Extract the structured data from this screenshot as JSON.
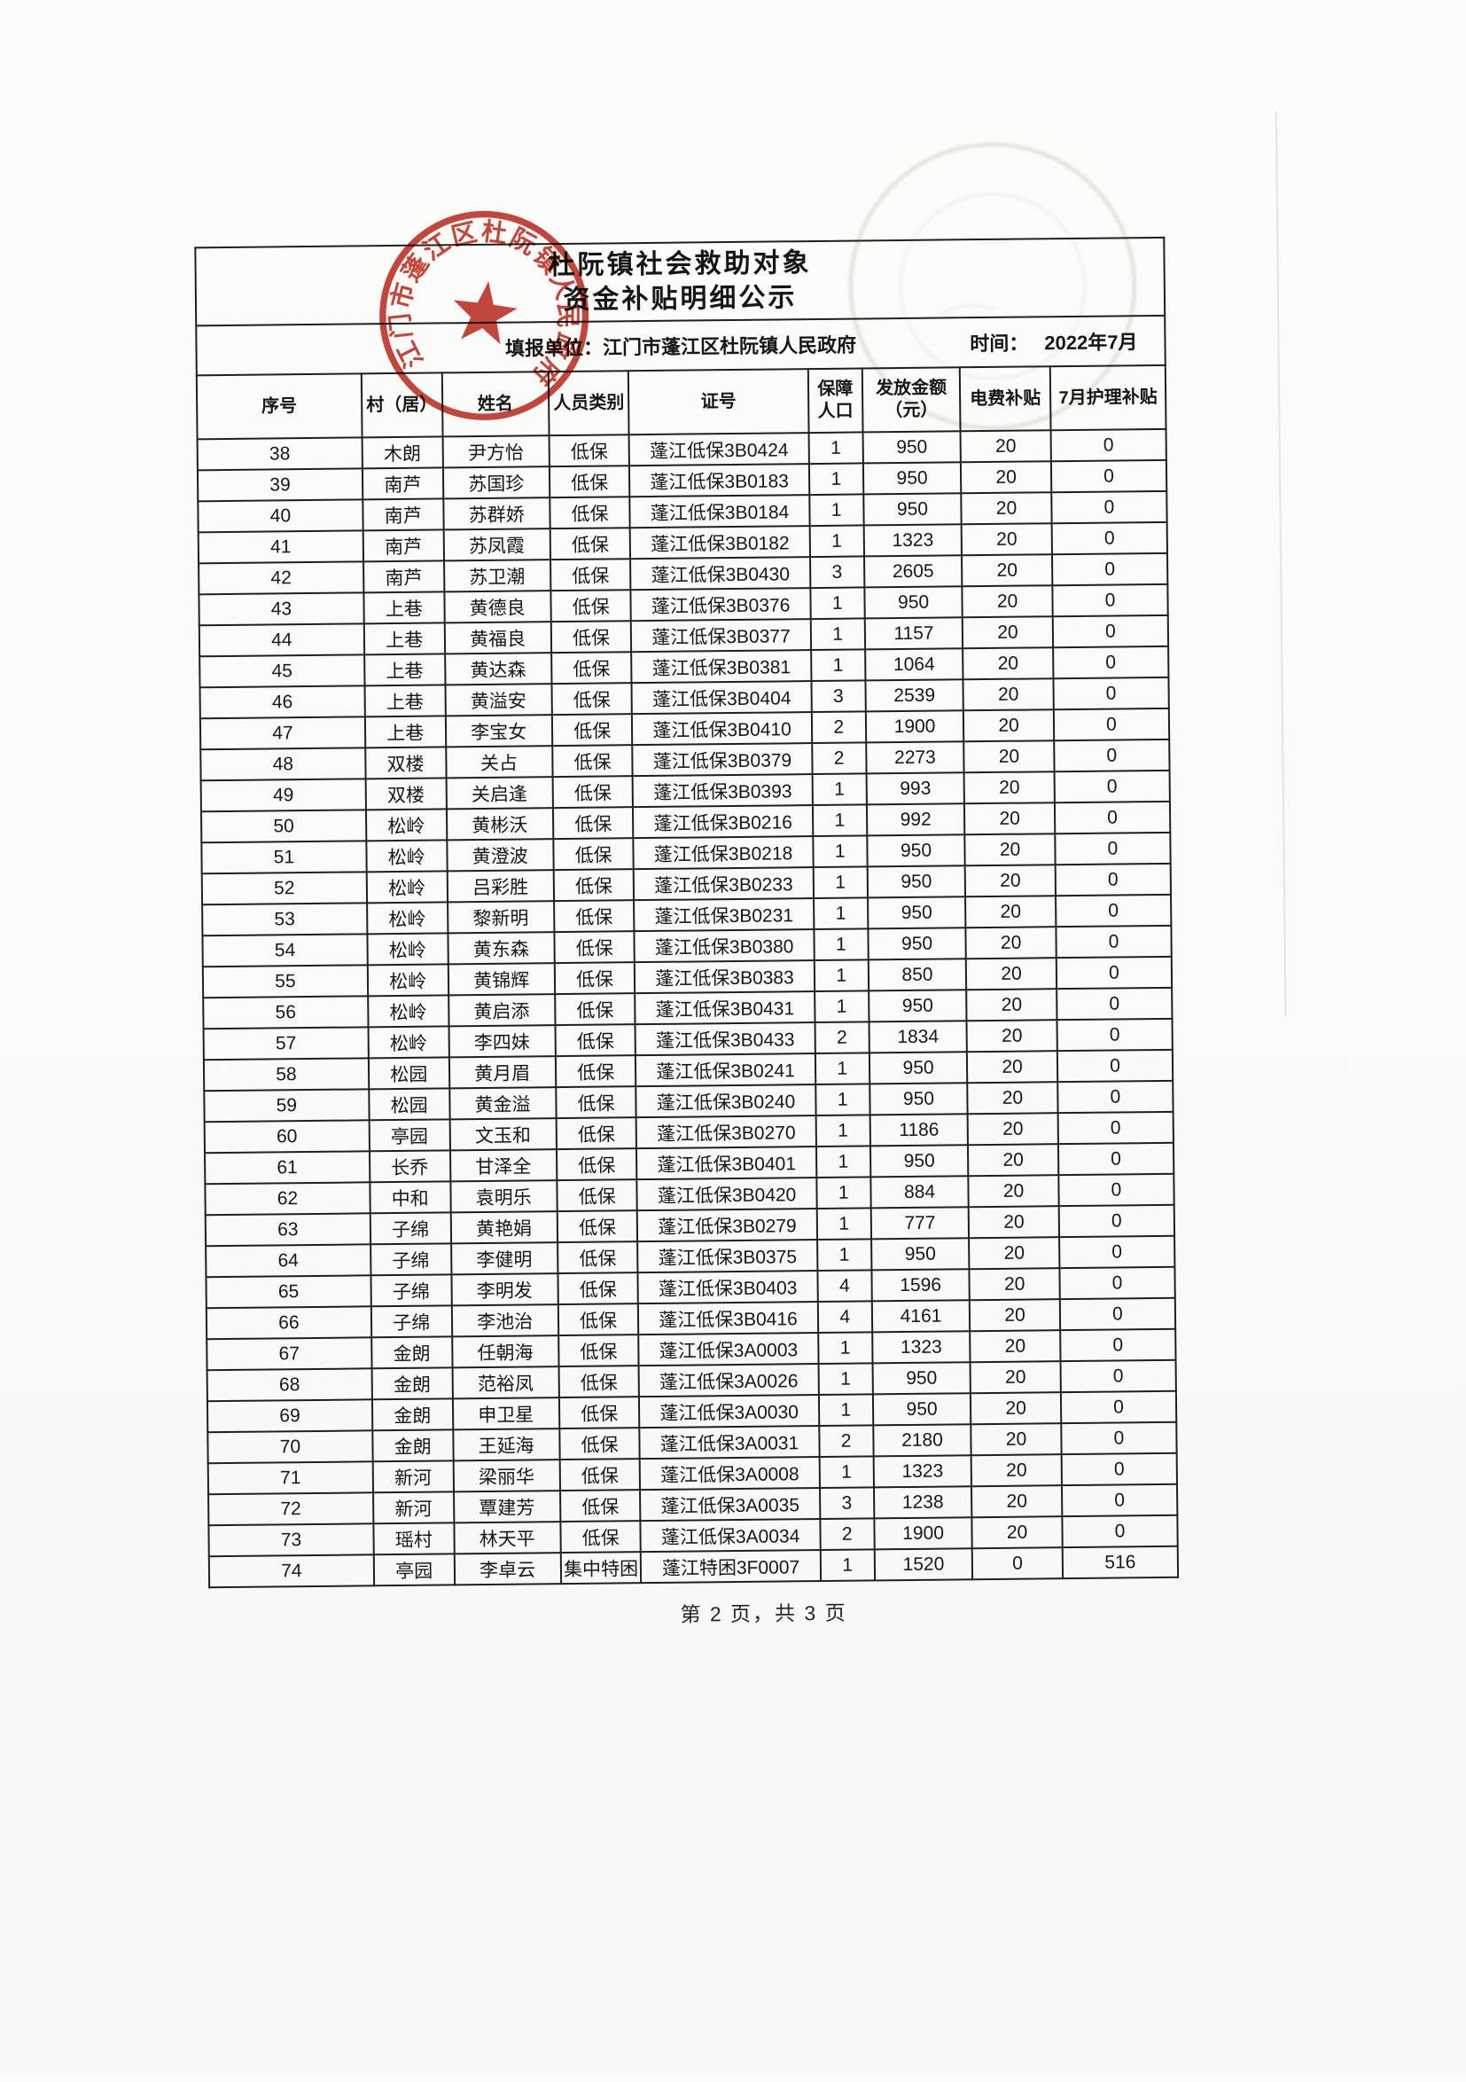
{
  "title": {
    "line1": "杜阮镇社会救助对象",
    "line2": "资金补贴明细公示"
  },
  "report_unit": {
    "label": "填报单位：",
    "value": "江门市蓬江区杜阮镇人民政府"
  },
  "time": {
    "label": "时间：",
    "value": "2022年7月"
  },
  "stamp": {
    "text": "江门市蓬江区杜阮镇人民政府",
    "color": "#b93026"
  },
  "footer": {
    "page_info": "第 2 页，共 3 页"
  },
  "table": {
    "columns": [
      "序号",
      "村（居）",
      "姓名",
      "人员类别",
      "证号",
      "保障人口",
      "发放金额（元）",
      "电费补贴",
      "7月护理补贴"
    ],
    "keys": [
      "index",
      "village",
      "name",
      "category",
      "cert-no",
      "population",
      "amount",
      "electric-subsidy",
      "nursing-subsidy"
    ],
    "rows": [
      [
        38,
        "木朗",
        "尹方怡",
        "低保",
        "蓬江低保3B0424",
        1,
        950,
        20,
        0
      ],
      [
        39,
        "南芦",
        "苏国珍",
        "低保",
        "蓬江低保3B0183",
        1,
        950,
        20,
        0
      ],
      [
        40,
        "南芦",
        "苏群娇",
        "低保",
        "蓬江低保3B0184",
        1,
        950,
        20,
        0
      ],
      [
        41,
        "南芦",
        "苏凤霞",
        "低保",
        "蓬江低保3B0182",
        1,
        1323,
        20,
        0
      ],
      [
        42,
        "南芦",
        "苏卫潮",
        "低保",
        "蓬江低保3B0430",
        3,
        2605,
        20,
        0
      ],
      [
        43,
        "上巷",
        "黄德良",
        "低保",
        "蓬江低保3B0376",
        1,
        950,
        20,
        0
      ],
      [
        44,
        "上巷",
        "黄福良",
        "低保",
        "蓬江低保3B0377",
        1,
        1157,
        20,
        0
      ],
      [
        45,
        "上巷",
        "黄达森",
        "低保",
        "蓬江低保3B0381",
        1,
        1064,
        20,
        0
      ],
      [
        46,
        "上巷",
        "黄溢安",
        "低保",
        "蓬江低保3B0404",
        3,
        2539,
        20,
        0
      ],
      [
        47,
        "上巷",
        "李宝女",
        "低保",
        "蓬江低保3B0410",
        2,
        1900,
        20,
        0
      ],
      [
        48,
        "双楼",
        "关占",
        "低保",
        "蓬江低保3B0379",
        2,
        2273,
        20,
        0
      ],
      [
        49,
        "双楼",
        "关启逢",
        "低保",
        "蓬江低保3B0393",
        1,
        993,
        20,
        0
      ],
      [
        50,
        "松岭",
        "黄彬沃",
        "低保",
        "蓬江低保3B0216",
        1,
        992,
        20,
        0
      ],
      [
        51,
        "松岭",
        "黄澄波",
        "低保",
        "蓬江低保3B0218",
        1,
        950,
        20,
        0
      ],
      [
        52,
        "松岭",
        "吕彩胜",
        "低保",
        "蓬江低保3B0233",
        1,
        950,
        20,
        0
      ],
      [
        53,
        "松岭",
        "黎新明",
        "低保",
        "蓬江低保3B0231",
        1,
        950,
        20,
        0
      ],
      [
        54,
        "松岭",
        "黄东森",
        "低保",
        "蓬江低保3B0380",
        1,
        950,
        20,
        0
      ],
      [
        55,
        "松岭",
        "黄锦辉",
        "低保",
        "蓬江低保3B0383",
        1,
        850,
        20,
        0
      ],
      [
        56,
        "松岭",
        "黄启添",
        "低保",
        "蓬江低保3B0431",
        1,
        950,
        20,
        0
      ],
      [
        57,
        "松岭",
        "李四妹",
        "低保",
        "蓬江低保3B0433",
        2,
        1834,
        20,
        0
      ],
      [
        58,
        "松园",
        "黄月眉",
        "低保",
        "蓬江低保3B0241",
        1,
        950,
        20,
        0
      ],
      [
        59,
        "松园",
        "黄金溢",
        "低保",
        "蓬江低保3B0240",
        1,
        950,
        20,
        0
      ],
      [
        60,
        "亭园",
        "文玉和",
        "低保",
        "蓬江低保3B0270",
        1,
        1186,
        20,
        0
      ],
      [
        61,
        "长乔",
        "甘泽全",
        "低保",
        "蓬江低保3B0401",
        1,
        950,
        20,
        0
      ],
      [
        62,
        "中和",
        "袁明乐",
        "低保",
        "蓬江低保3B0420",
        1,
        884,
        20,
        0
      ],
      [
        63,
        "子绵",
        "黄艳娟",
        "低保",
        "蓬江低保3B0279",
        1,
        777,
        20,
        0
      ],
      [
        64,
        "子绵",
        "李健明",
        "低保",
        "蓬江低保3B0375",
        1,
        950,
        20,
        0
      ],
      [
        65,
        "子绵",
        "李明发",
        "低保",
        "蓬江低保3B0403",
        4,
        1596,
        20,
        0
      ],
      [
        66,
        "子绵",
        "李池治",
        "低保",
        "蓬江低保3B0416",
        4,
        4161,
        20,
        0
      ],
      [
        67,
        "金朗",
        "任朝海",
        "低保",
        "蓬江低保3A0003",
        1,
        1323,
        20,
        0
      ],
      [
        68,
        "金朗",
        "范裕凤",
        "低保",
        "蓬江低保3A0026",
        1,
        950,
        20,
        0
      ],
      [
        69,
        "金朗",
        "申卫星",
        "低保",
        "蓬江低保3A0030",
        1,
        950,
        20,
        0
      ],
      [
        70,
        "金朗",
        "王延海",
        "低保",
        "蓬江低保3A0031",
        2,
        2180,
        20,
        0
      ],
      [
        71,
        "新河",
        "梁丽华",
        "低保",
        "蓬江低保3A0008",
        1,
        1323,
        20,
        0
      ],
      [
        72,
        "新河",
        "覃建芳",
        "低保",
        "蓬江低保3A0035",
        3,
        1238,
        20,
        0
      ],
      [
        73,
        "瑶村",
        "林天平",
        "低保",
        "蓬江低保3A0034",
        2,
        1900,
        20,
        0
      ],
      [
        74,
        "亭园",
        "李卓云",
        "集中特困",
        "蓬江特困3F0007",
        1,
        1520,
        0,
        516
      ]
    ]
  }
}
